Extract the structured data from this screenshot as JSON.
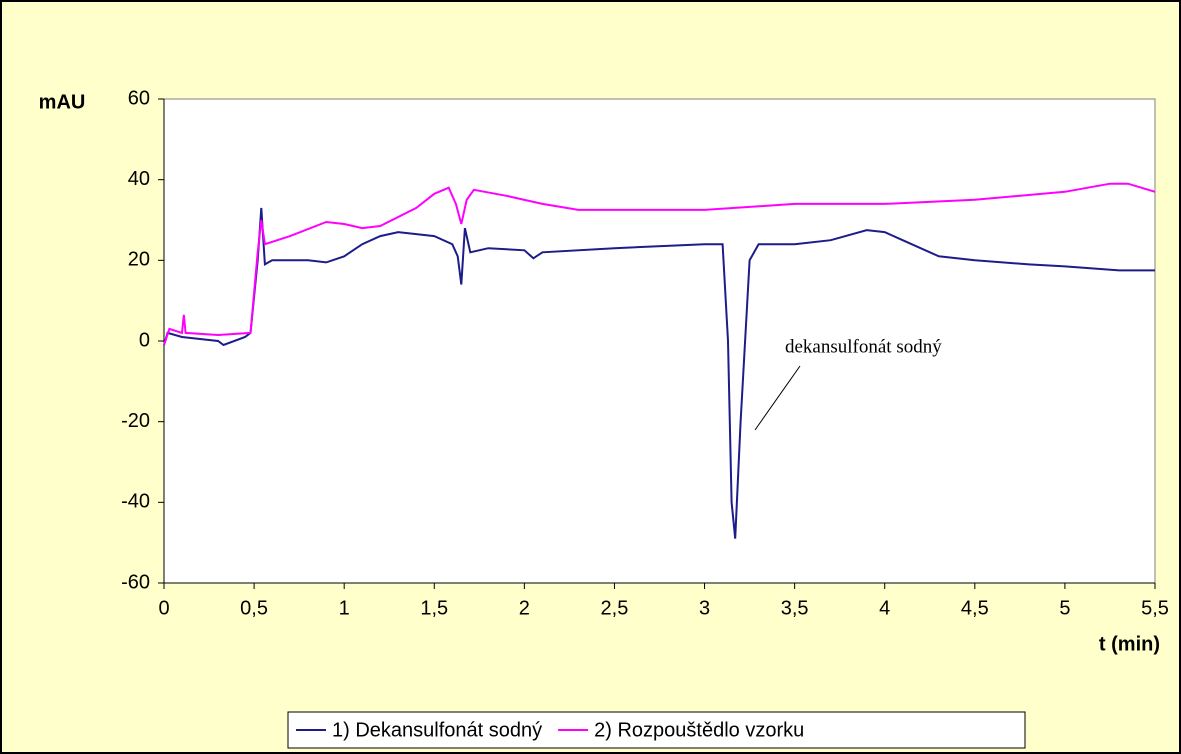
{
  "chart_data": {
    "type": "line",
    "ylabel": "mAU",
    "xlabel": "t (min)",
    "annotation": "dekansulfonát sodný",
    "xlim": [
      0,
      5.5
    ],
    "xticks": [
      0,
      {
        "value": 0.5,
        "label": "0,5"
      },
      1,
      {
        "value": 1.5,
        "label": "1,5"
      },
      2,
      {
        "value": 2.5,
        "label": "2,5"
      },
      3,
      {
        "value": 3.5,
        "label": "3,5"
      },
      4,
      {
        "value": 4.5,
        "label": "4,5"
      },
      5,
      {
        "value": 5.5,
        "label": "5,5"
      }
    ],
    "ylim": [
      -60,
      60
    ],
    "yticks": [
      -60,
      -40,
      -20,
      0,
      20,
      40,
      60
    ],
    "grid": false,
    "legend": "bottom",
    "series": [
      {
        "name": "1) Dekansulfonát sodný",
        "color": "#1c1c8a",
        "x": [
          0,
          0.02,
          0.1,
          0.2,
          0.3,
          0.33,
          0.45,
          0.48,
          0.52,
          0.54,
          0.56,
          0.6,
          0.8,
          0.9,
          1.0,
          1.1,
          1.2,
          1.3,
          1.4,
          1.5,
          1.6,
          1.63,
          1.65,
          1.67,
          1.7,
          1.8,
          2.0,
          2.05,
          2.1,
          2.5,
          3.0,
          3.1,
          3.13,
          3.15,
          3.17,
          3.2,
          3.25,
          3.3,
          3.5,
          3.7,
          3.9,
          4.0,
          4.1,
          4.3,
          4.5,
          4.8,
          5.0,
          5.3,
          5.5
        ],
        "values": [
          -1,
          2,
          1,
          0.5,
          0,
          -1,
          1,
          2,
          20,
          33,
          19,
          20,
          20,
          19.5,
          21,
          24,
          26,
          27,
          26.5,
          26,
          24,
          21,
          14,
          28,
          22,
          23,
          22.5,
          20.5,
          22,
          23,
          24,
          24,
          0,
          -40,
          -49,
          -20,
          20,
          24,
          24,
          25,
          27.5,
          27,
          25,
          21,
          20,
          19,
          18.5,
          17.5,
          17.5
        ]
      },
      {
        "name": "2) Rozpouštědlo vzorku",
        "color": "#ff00ff",
        "x": [
          0,
          0.03,
          0.1,
          0.11,
          0.12,
          0.3,
          0.48,
          0.52,
          0.54,
          0.56,
          0.7,
          0.9,
          1.0,
          1.1,
          1.2,
          1.4,
          1.5,
          1.58,
          1.62,
          1.65,
          1.68,
          1.72,
          1.9,
          2.1,
          2.3,
          2.6,
          3.0,
          3.5,
          4.0,
          4.5,
          5.0,
          5.25,
          5.35,
          5.5
        ],
        "values": [
          -1,
          3,
          2,
          6.5,
          2,
          1.5,
          2,
          22,
          30,
          24,
          26,
          29.5,
          29,
          28,
          28.5,
          33,
          36.5,
          38,
          34,
          29,
          35,
          37.5,
          36,
          34,
          32.5,
          32.5,
          32.5,
          34,
          34,
          35,
          37,
          39,
          39,
          37
        ]
      }
    ]
  }
}
